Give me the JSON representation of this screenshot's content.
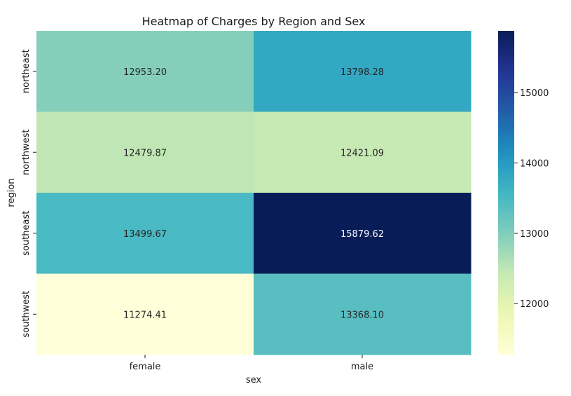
{
  "chart_data": {
    "type": "heatmap",
    "title": "Heatmap of Charges by Region and Sex",
    "xlabel": "sex",
    "ylabel": "region",
    "x_categories": [
      "female",
      "male"
    ],
    "y_categories": [
      "northeast",
      "northwest",
      "southeast",
      "southwest"
    ],
    "values": [
      [
        12953.2,
        13798.28
      ],
      [
        12479.87,
        12421.09
      ],
      [
        13499.67,
        15879.62
      ],
      [
        11274.41,
        13368.1
      ]
    ],
    "value_labels": [
      [
        "12953.20",
        "13798.28"
      ],
      [
        "12479.87",
        "12421.09"
      ],
      [
        "13499.67",
        "15879.62"
      ],
      [
        "11274.41",
        "13368.10"
      ]
    ],
    "colormap": "YlGnBu",
    "colorbar": {
      "range": [
        11274.41,
        15879.62
      ],
      "ticks": [
        12000,
        13000,
        14000,
        15000
      ],
      "tick_labels": [
        "12000",
        "13000",
        "14000",
        "15000"
      ]
    },
    "grid": false,
    "legend": "colorbar-right"
  }
}
